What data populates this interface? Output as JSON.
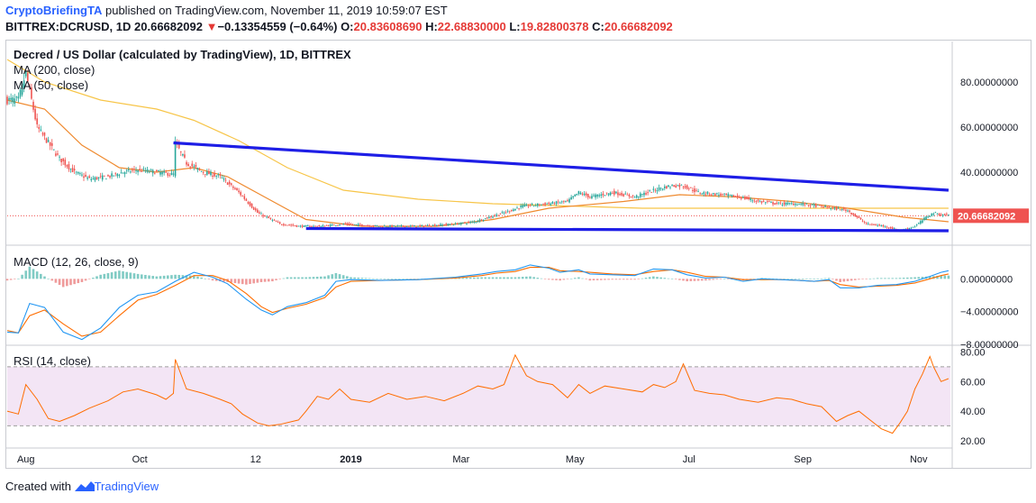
{
  "header": {
    "author": "CryptoBriefingTA",
    "published": " published on TradingView.com, November 11, 2019 10:59:07 EST",
    "symbol": "BITTREX:DCRUSD, 1D ",
    "last": "20.66682092",
    "change": "−0.13354559 (−0.64%)",
    "o_label": "O:",
    "o": "20.83608690",
    "h_label": "H:",
    "h": "22.68830000",
    "l_label": "L:",
    "l": "19.82800378",
    "c_label": "C:",
    "c": "20.66682092"
  },
  "legend": {
    "title": "Decred / US Dollar (calculated by TradingView), 1D, BITTREX",
    "ma200": "MA (200, close)",
    "ma50": "MA (50, close)",
    "macd": "MACD (12, 26, close, 9)",
    "rsi": "RSI (14, close)"
  },
  "footer": {
    "created_with": "Created with ",
    "brand": "TradingView"
  },
  "colors": {
    "up": "#26a69a",
    "down": "#ef5350",
    "ma200": "#f7c548",
    "ma50": "#ef8a2f",
    "trendline": "#1e1ee6",
    "macd": "#2196f3",
    "signal": "#ff6d00",
    "rsi": "#ff6d00",
    "rsi_band": "#f3e5f5",
    "price_tag": "#ef5350"
  },
  "chart_data": [
    {
      "type": "candlestick",
      "panel": "price",
      "title": "Decred / US Dollar (calculated by TradingView), 1D, BITTREX",
      "x_ticks": [
        "Aug",
        "Oct",
        "12",
        "2019",
        "Mar",
        "May",
        "Jul",
        "Sep",
        "Nov"
      ],
      "x_tick_days": [
        10,
        71,
        133,
        184,
        243,
        304,
        365,
        426,
        488
      ],
      "ylim": [
        8,
        98
      ],
      "y_ticks": [
        "80.00000000",
        "60.00000000",
        "40.00000000"
      ],
      "y_tick_values": [
        80,
        60,
        40
      ],
      "last_price_label": "20.66682092",
      "last_price": 20.67,
      "close_path": [
        [
          0,
          72
        ],
        [
          6,
          72
        ],
        [
          10,
          84
        ],
        [
          16,
          60
        ],
        [
          22,
          53
        ],
        [
          28,
          46
        ],
        [
          36,
          40
        ],
        [
          44,
          37
        ],
        [
          54,
          38
        ],
        [
          62,
          40
        ],
        [
          70,
          41
        ],
        [
          80,
          40
        ],
        [
          89,
          39
        ],
        [
          90,
          53
        ],
        [
          96,
          44
        ],
        [
          105,
          40
        ],
        [
          114,
          38
        ],
        [
          124,
          31
        ],
        [
          134,
          22
        ],
        [
          146,
          17
        ],
        [
          156,
          16
        ],
        [
          168,
          16
        ],
        [
          180,
          17
        ],
        [
          200,
          16
        ],
        [
          220,
          16
        ],
        [
          240,
          17
        ],
        [
          250,
          18
        ],
        [
          266,
          22
        ],
        [
          276,
          25
        ],
        [
          290,
          26
        ],
        [
          300,
          27
        ],
        [
          306,
          31
        ],
        [
          312,
          29
        ],
        [
          324,
          31
        ],
        [
          336,
          29
        ],
        [
          350,
          33
        ],
        [
          356,
          34
        ],
        [
          362,
          34
        ],
        [
          370,
          31
        ],
        [
          382,
          30
        ],
        [
          392,
          29
        ],
        [
          402,
          27
        ],
        [
          412,
          26
        ],
        [
          424,
          26
        ],
        [
          434,
          25
        ],
        [
          450,
          23
        ],
        [
          460,
          17
        ],
        [
          470,
          16
        ],
        [
          478,
          14
        ],
        [
          486,
          16
        ],
        [
          492,
          20
        ],
        [
          496,
          22
        ],
        [
          500,
          21
        ],
        [
          504,
          21
        ]
      ],
      "ma200_path": [
        [
          0,
          90
        ],
        [
          20,
          80
        ],
        [
          50,
          72
        ],
        [
          80,
          68
        ],
        [
          100,
          63
        ],
        [
          124,
          54
        ],
        [
          150,
          42
        ],
        [
          180,
          32
        ],
        [
          220,
          28
        ],
        [
          260,
          26
        ],
        [
          300,
          25
        ],
        [
          340,
          24
        ],
        [
          380,
          24
        ],
        [
          420,
          24
        ],
        [
          460,
          24
        ],
        [
          504,
          24
        ]
      ],
      "ma50_path": [
        [
          0,
          72
        ],
        [
          20,
          68
        ],
        [
          40,
          52
        ],
        [
          60,
          42
        ],
        [
          80,
          40
        ],
        [
          100,
          42
        ],
        [
          118,
          38
        ],
        [
          140,
          28
        ],
        [
          160,
          19
        ],
        [
          190,
          16
        ],
        [
          230,
          16
        ],
        [
          260,
          19
        ],
        [
          290,
          24
        ],
        [
          330,
          27
        ],
        [
          360,
          30
        ],
        [
          390,
          29
        ],
        [
          420,
          27
        ],
        [
          450,
          24
        ],
        [
          480,
          20
        ],
        [
          504,
          18
        ]
      ],
      "trendlines": [
        {
          "from": [
            89,
            53
          ],
          "to": [
            504,
            32
          ]
        },
        {
          "from": [
            160,
            15
          ],
          "to": [
            504,
            14
          ]
        }
      ]
    },
    {
      "type": "line",
      "panel": "macd",
      "title": "MACD (12, 26, close, 9)",
      "ylim": [
        -8,
        4
      ],
      "y_ticks": [
        "0.00000000",
        "−4.00000000",
        "−8.00000000"
      ],
      "y_tick_values": [
        0,
        -4,
        -8
      ],
      "series": [
        {
          "name": "MACD",
          "points": [
            [
              0,
              -6.5
            ],
            [
              6,
              -6.6
            ],
            [
              12,
              -3
            ],
            [
              20,
              -3.5
            ],
            [
              30,
              -6.5
            ],
            [
              40,
              -7.4
            ],
            [
              50,
              -6
            ],
            [
              60,
              -3.5
            ],
            [
              70,
              -2
            ],
            [
              80,
              -1.6
            ],
            [
              90,
              -0.3
            ],
            [
              100,
              0.8
            ],
            [
              110,
              0.2
            ],
            [
              118,
              -0.6
            ],
            [
              128,
              -2.5
            ],
            [
              136,
              -3.8
            ],
            [
              142,
              -4.4
            ],
            [
              150,
              -3.4
            ],
            [
              160,
              -2.9
            ],
            [
              170,
              -2
            ],
            [
              176,
              -0.3
            ],
            [
              184,
              -0.1
            ],
            [
              200,
              -0.2
            ],
            [
              220,
              -0.1
            ],
            [
              240,
              0.2
            ],
            [
              254,
              0.6
            ],
            [
              262,
              0.9
            ],
            [
              272,
              1.1
            ],
            [
              280,
              1.7
            ],
            [
              290,
              1.3
            ],
            [
              296,
              0.8
            ],
            [
              306,
              1.1
            ],
            [
              312,
              0.6
            ],
            [
              324,
              0.5
            ],
            [
              336,
              0.4
            ],
            [
              346,
              1.2
            ],
            [
              356,
              1.1
            ],
            [
              364,
              0.5
            ],
            [
              374,
              0.1
            ],
            [
              384,
              0.2
            ],
            [
              394,
              -0.3
            ],
            [
              404,
              0
            ],
            [
              414,
              -0.1
            ],
            [
              424,
              -0.2
            ],
            [
              432,
              -0.3
            ],
            [
              440,
              -0.1
            ],
            [
              446,
              -1.1
            ],
            [
              456,
              -1.1
            ],
            [
              466,
              -0.8
            ],
            [
              476,
              -0.7
            ],
            [
              486,
              -0.3
            ],
            [
              494,
              0.3
            ],
            [
              500,
              0.8
            ],
            [
              504,
              1
            ]
          ]
        },
        {
          "name": "Signal",
          "points": [
            [
              0,
              -6.3
            ],
            [
              6,
              -6.6
            ],
            [
              12,
              -4.5
            ],
            [
              20,
              -3.8
            ],
            [
              30,
              -5.5
            ],
            [
              40,
              -7
            ],
            [
              50,
              -6.5
            ],
            [
              60,
              -4.5
            ],
            [
              70,
              -2.6
            ],
            [
              80,
              -1.9
            ],
            [
              90,
              -0.8
            ],
            [
              100,
              0.4
            ],
            [
              110,
              0.4
            ],
            [
              118,
              -0.2
            ],
            [
              128,
              -1.8
            ],
            [
              136,
              -3.4
            ],
            [
              142,
              -4.1
            ],
            [
              150,
              -3.6
            ],
            [
              160,
              -3.1
            ],
            [
              170,
              -2.3
            ],
            [
              176,
              -1
            ],
            [
              184,
              -0.3
            ],
            [
              200,
              -0.2
            ],
            [
              220,
              -0.1
            ],
            [
              240,
              0.1
            ],
            [
              254,
              0.4
            ],
            [
              262,
              0.7
            ],
            [
              272,
              0.9
            ],
            [
              280,
              1.4
            ],
            [
              290,
              1.4
            ],
            [
              296,
              1
            ],
            [
              306,
              0.9
            ],
            [
              312,
              0.8
            ],
            [
              324,
              0.6
            ],
            [
              336,
              0.5
            ],
            [
              346,
              0.9
            ],
            [
              356,
              1.1
            ],
            [
              364,
              0.8
            ],
            [
              374,
              0.3
            ],
            [
              384,
              0.2
            ],
            [
              394,
              -0.1
            ],
            [
              404,
              -0.1
            ],
            [
              414,
              -0.1
            ],
            [
              424,
              -0.2
            ],
            [
              432,
              -0.3
            ],
            [
              440,
              -0.2
            ],
            [
              446,
              -0.7
            ],
            [
              456,
              -1
            ],
            [
              466,
              -0.9
            ],
            [
              476,
              -0.8
            ],
            [
              486,
              -0.5
            ],
            [
              494,
              0
            ],
            [
              500,
              0.4
            ],
            [
              504,
              0.6
            ]
          ]
        }
      ]
    },
    {
      "type": "line",
      "panel": "rsi",
      "title": "RSI (14, close)",
      "ylim": [
        15,
        84
      ],
      "band": [
        30,
        70
      ],
      "y_ticks": [
        "80.00",
        "60.00",
        "40.00",
        "20.00"
      ],
      "y_tick_values": [
        80,
        60,
        40,
        20
      ],
      "series": [
        {
          "name": "RSI",
          "points": [
            [
              0,
              40
            ],
            [
              6,
              38
            ],
            [
              10,
              58
            ],
            [
              16,
              48
            ],
            [
              22,
              35
            ],
            [
              28,
              33
            ],
            [
              36,
              37
            ],
            [
              44,
              42
            ],
            [
              54,
              47
            ],
            [
              62,
              53
            ],
            [
              70,
              55
            ],
            [
              80,
              51
            ],
            [
              85,
              48
            ],
            [
              89,
              52
            ],
            [
              90,
              75
            ],
            [
              96,
              55
            ],
            [
              105,
              52
            ],
            [
              114,
              48
            ],
            [
              120,
              45
            ],
            [
              126,
              38
            ],
            [
              134,
              32
            ],
            [
              140,
              30
            ],
            [
              146,
              31
            ],
            [
              156,
              34
            ],
            [
              160,
              40
            ],
            [
              166,
              50
            ],
            [
              172,
              48
            ],
            [
              178,
              55
            ],
            [
              184,
              48
            ],
            [
              194,
              46
            ],
            [
              204,
              52
            ],
            [
              214,
              48
            ],
            [
              224,
              50
            ],
            [
              234,
              47
            ],
            [
              244,
              52
            ],
            [
              252,
              57
            ],
            [
              260,
              55
            ],
            [
              266,
              58
            ],
            [
              272,
              78
            ],
            [
              278,
              64
            ],
            [
              284,
              60
            ],
            [
              292,
              58
            ],
            [
              300,
              49
            ],
            [
              306,
              58
            ],
            [
              312,
              52
            ],
            [
              320,
              57
            ],
            [
              330,
              55
            ],
            [
              340,
              53
            ],
            [
              346,
              58
            ],
            [
              352,
              56
            ],
            [
              358,
              60
            ],
            [
              362,
              72
            ],
            [
              368,
              54
            ],
            [
              376,
              52
            ],
            [
              384,
              51
            ],
            [
              392,
              48
            ],
            [
              402,
              46
            ],
            [
              412,
              49
            ],
            [
              420,
              48
            ],
            [
              428,
              45
            ],
            [
              436,
              43
            ],
            [
              444,
              33
            ],
            [
              450,
              37
            ],
            [
              456,
              40
            ],
            [
              462,
              34
            ],
            [
              468,
              28
            ],
            [
              474,
              25
            ],
            [
              478,
              32
            ],
            [
              482,
              40
            ],
            [
              486,
              55
            ],
            [
              490,
              65
            ],
            [
              494,
              77
            ],
            [
              496,
              70
            ],
            [
              500,
              60
            ],
            [
              504,
              62
            ]
          ]
        }
      ]
    }
  ]
}
